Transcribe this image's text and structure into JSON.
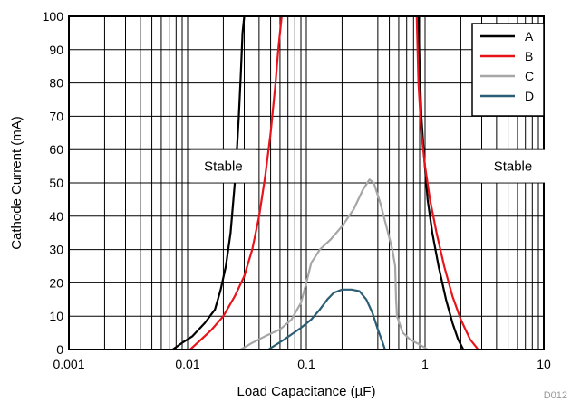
{
  "figure_id": "D012",
  "chart_data": {
    "type": "line",
    "title": "",
    "xlabel": "Load Capacitance (µF)",
    "ylabel": "Cathode Current (mA)",
    "xscale": "log",
    "xlim": [
      0.001,
      10
    ],
    "ylim": [
      0,
      100
    ],
    "x_ticks": [
      0.001,
      0.01,
      0.1,
      1,
      10
    ],
    "x_tick_labels": [
      "0.001",
      "0.01",
      "0.1",
      "1",
      "10"
    ],
    "y_ticks": [
      0,
      10,
      20,
      30,
      40,
      50,
      60,
      70,
      80,
      90,
      100
    ],
    "y_tick_labels": [
      "0",
      "10",
      "20",
      "30",
      "40",
      "50",
      "60",
      "70",
      "80",
      "90",
      "100"
    ],
    "grid": true,
    "legend_position": "top-right",
    "annotations": [
      {
        "text": "Stable",
        "x": 0.02,
        "y": 55
      },
      {
        "text": "Stable",
        "x": 5.5,
        "y": 55
      }
    ],
    "series": [
      {
        "name": "A",
        "color": "#000000",
        "segments": [
          [
            [
              0.0075,
              0
            ],
            [
              0.009,
              2
            ],
            [
              0.011,
              4
            ],
            [
              0.014,
              8
            ],
            [
              0.017,
              12
            ],
            [
              0.019,
              18
            ],
            [
              0.021,
              25
            ],
            [
              0.023,
              35
            ],
            [
              0.025,
              50
            ],
            [
              0.026,
              60
            ],
            [
              0.027,
              70
            ],
            [
              0.028,
              82
            ],
            [
              0.029,
              95
            ],
            [
              0.03,
              100
            ]
          ],
          [
            [
              0.88,
              100
            ],
            [
              0.9,
              85
            ],
            [
              0.93,
              70
            ],
            [
              0.98,
              58
            ],
            [
              1.05,
              45
            ],
            [
              1.15,
              35
            ],
            [
              1.3,
              25
            ],
            [
              1.5,
              15
            ],
            [
              1.7,
              8
            ],
            [
              1.9,
              3
            ],
            [
              2.1,
              0
            ]
          ]
        ]
      },
      {
        "name": "B",
        "color": "#e8141b",
        "segments": [
          [
            [
              0.0105,
              0
            ],
            [
              0.013,
              3
            ],
            [
              0.016,
              6
            ],
            [
              0.02,
              10
            ],
            [
              0.025,
              16
            ],
            [
              0.03,
              22
            ],
            [
              0.035,
              30
            ],
            [
              0.04,
              40
            ],
            [
              0.045,
              52
            ],
            [
              0.05,
              65
            ],
            [
              0.055,
              80
            ],
            [
              0.058,
              90
            ],
            [
              0.062,
              100
            ]
          ],
          [
            [
              0.85,
              100
            ],
            [
              0.88,
              80
            ],
            [
              0.93,
              65
            ],
            [
              1.0,
              55
            ],
            [
              1.1,
              45
            ],
            [
              1.25,
              35
            ],
            [
              1.45,
              25
            ],
            [
              1.7,
              16
            ],
            [
              2.0,
              9
            ],
            [
              2.4,
              3
            ],
            [
              2.8,
              0
            ]
          ]
        ]
      },
      {
        "name": "C",
        "color": "#a6a6a6",
        "segments": [
          [
            [
              0.028,
              0
            ],
            [
              0.035,
              2
            ],
            [
              0.045,
              4
            ],
            [
              0.06,
              6
            ],
            [
              0.075,
              9
            ],
            [
              0.09,
              14
            ],
            [
              0.1,
              20
            ],
            [
              0.11,
              26
            ],
            [
              0.13,
              30
            ],
            [
              0.16,
              33
            ],
            [
              0.2,
              37
            ],
            [
              0.25,
              42
            ],
            [
              0.3,
              48
            ],
            [
              0.34,
              51
            ],
            [
              0.37,
              50
            ],
            [
              0.42,
              44
            ],
            [
              0.48,
              36
            ],
            [
              0.53,
              30
            ],
            [
              0.56,
              25
            ],
            [
              0.57,
              15
            ],
            [
              0.58,
              10
            ],
            [
              0.65,
              5
            ],
            [
              0.75,
              3
            ],
            [
              0.9,
              1.5
            ],
            [
              1.05,
              0
            ]
          ]
        ]
      },
      {
        "name": "D",
        "color": "#2b5d74",
        "segments": [
          [
            [
              0.048,
              0
            ],
            [
              0.065,
              3
            ],
            [
              0.09,
              6.5
            ],
            [
              0.11,
              9
            ],
            [
              0.13,
              12
            ],
            [
              0.15,
              15
            ],
            [
              0.17,
              17
            ],
            [
              0.2,
              18
            ],
            [
              0.24,
              18
            ],
            [
              0.28,
              17.5
            ],
            [
              0.32,
              15
            ],
            [
              0.36,
              11
            ],
            [
              0.4,
              6
            ],
            [
              0.43,
              3
            ],
            [
              0.46,
              0
            ]
          ]
        ]
      }
    ]
  }
}
